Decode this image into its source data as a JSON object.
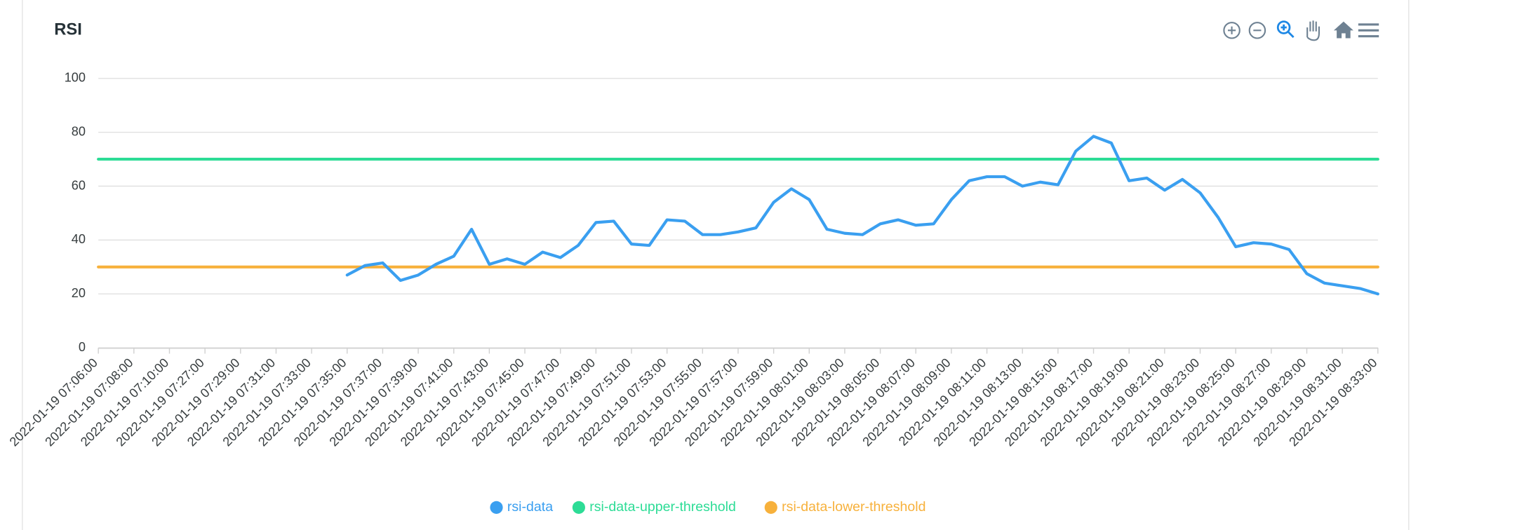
{
  "chart_data": {
    "type": "line",
    "title": "RSI",
    "categories": [
      "2022-01-19 07:06:00",
      null,
      "2022-01-19 07:08:00",
      null,
      "2022-01-19 07:10:00",
      null,
      "2022-01-19 07:27:00",
      null,
      "2022-01-19 07:29:00",
      null,
      "2022-01-19 07:31:00",
      null,
      "2022-01-19 07:33:00",
      null,
      "2022-01-19 07:35:00",
      null,
      "2022-01-19 07:37:00",
      null,
      "2022-01-19 07:39:00",
      null,
      "2022-01-19 07:41:00",
      null,
      "2022-01-19 07:43:00",
      null,
      "2022-01-19 07:45:00",
      null,
      "2022-01-19 07:47:00",
      null,
      "2022-01-19 07:49:00",
      null,
      "2022-01-19 07:51:00",
      null,
      "2022-01-19 07:53:00",
      null,
      "2022-01-19 07:55:00",
      null,
      "2022-01-19 07:57:00",
      null,
      "2022-01-19 07:59:00",
      null,
      "2022-01-19 08:01:00",
      null,
      "2022-01-19 08:03:00",
      null,
      "2022-01-19 08:05:00",
      null,
      "2022-01-19 08:07:00",
      null,
      "2022-01-19 08:09:00",
      null,
      "2022-01-19 08:11:00",
      null,
      "2022-01-19 08:13:00",
      null,
      "2022-01-19 08:15:00",
      null,
      "2022-01-19 08:17:00",
      null,
      "2022-01-19 08:19:00",
      null,
      "2022-01-19 08:21:00",
      null,
      "2022-01-19 08:23:00",
      null,
      "2022-01-19 08:25:00",
      null,
      "2022-01-19 08:27:00",
      null,
      "2022-01-19 08:29:00",
      null,
      "2022-01-19 08:31:00",
      null,
      "2022-01-19 08:33:00"
    ],
    "series": [
      {
        "name": "rsi-data",
        "color": "#3a9ff0",
        "values": [
          null,
          null,
          null,
          null,
          null,
          null,
          null,
          null,
          null,
          null,
          null,
          null,
          null,
          null,
          27,
          30.5,
          31.5,
          25,
          27,
          31,
          34,
          44,
          31,
          33,
          31,
          35.5,
          33.5,
          38,
          46.5,
          47,
          38.5,
          38,
          47.5,
          47,
          42,
          42,
          43,
          44.5,
          54,
          59,
          55,
          44,
          42.5,
          42,
          46,
          47.5,
          45.5,
          46,
          55,
          62,
          63.5,
          63.5,
          60,
          61.5,
          60.5,
          73,
          78.5,
          76,
          62,
          63,
          58.5,
          62.5,
          57.5,
          48.5,
          37.5,
          39,
          38.5,
          36.5,
          27.5,
          24,
          23,
          22,
          20
        ]
      },
      {
        "name": "rsi-data-upper-threshold",
        "color": "#2ddc96",
        "values": [
          70,
          70,
          70,
          70,
          70,
          70,
          70,
          70,
          70,
          70,
          70,
          70,
          70,
          70,
          70,
          70,
          70,
          70,
          70,
          70,
          70,
          70,
          70,
          70,
          70,
          70,
          70,
          70,
          70,
          70,
          70,
          70,
          70,
          70,
          70,
          70,
          70,
          70,
          70,
          70,
          70,
          70,
          70,
          70,
          70,
          70,
          70,
          70,
          70,
          70,
          70,
          70,
          70,
          70,
          70,
          70,
          70,
          70,
          70,
          70,
          70,
          70,
          70,
          70,
          70,
          70,
          70,
          70,
          70,
          70,
          70,
          70,
          70
        ]
      },
      {
        "name": "rsi-data-lower-threshold",
        "color": "#f7b13c",
        "values": [
          30,
          30,
          30,
          30,
          30,
          30,
          30,
          30,
          30,
          30,
          30,
          30,
          30,
          30,
          30,
          30,
          30,
          30,
          30,
          30,
          30,
          30,
          30,
          30,
          30,
          30,
          30,
          30,
          30,
          30,
          30,
          30,
          30,
          30,
          30,
          30,
          30,
          30,
          30,
          30,
          30,
          30,
          30,
          30,
          30,
          30,
          30,
          30,
          30,
          30,
          30,
          30,
          30,
          30,
          30,
          30,
          30,
          30,
          30,
          30,
          30,
          30,
          30,
          30,
          30,
          30,
          30,
          30,
          30,
          30,
          30,
          30,
          30
        ]
      }
    ],
    "ylim": [
      0,
      100
    ],
    "yticks": [
      0,
      20,
      40,
      60,
      80,
      100
    ],
    "grid": true,
    "legend": "bottom"
  }
}
